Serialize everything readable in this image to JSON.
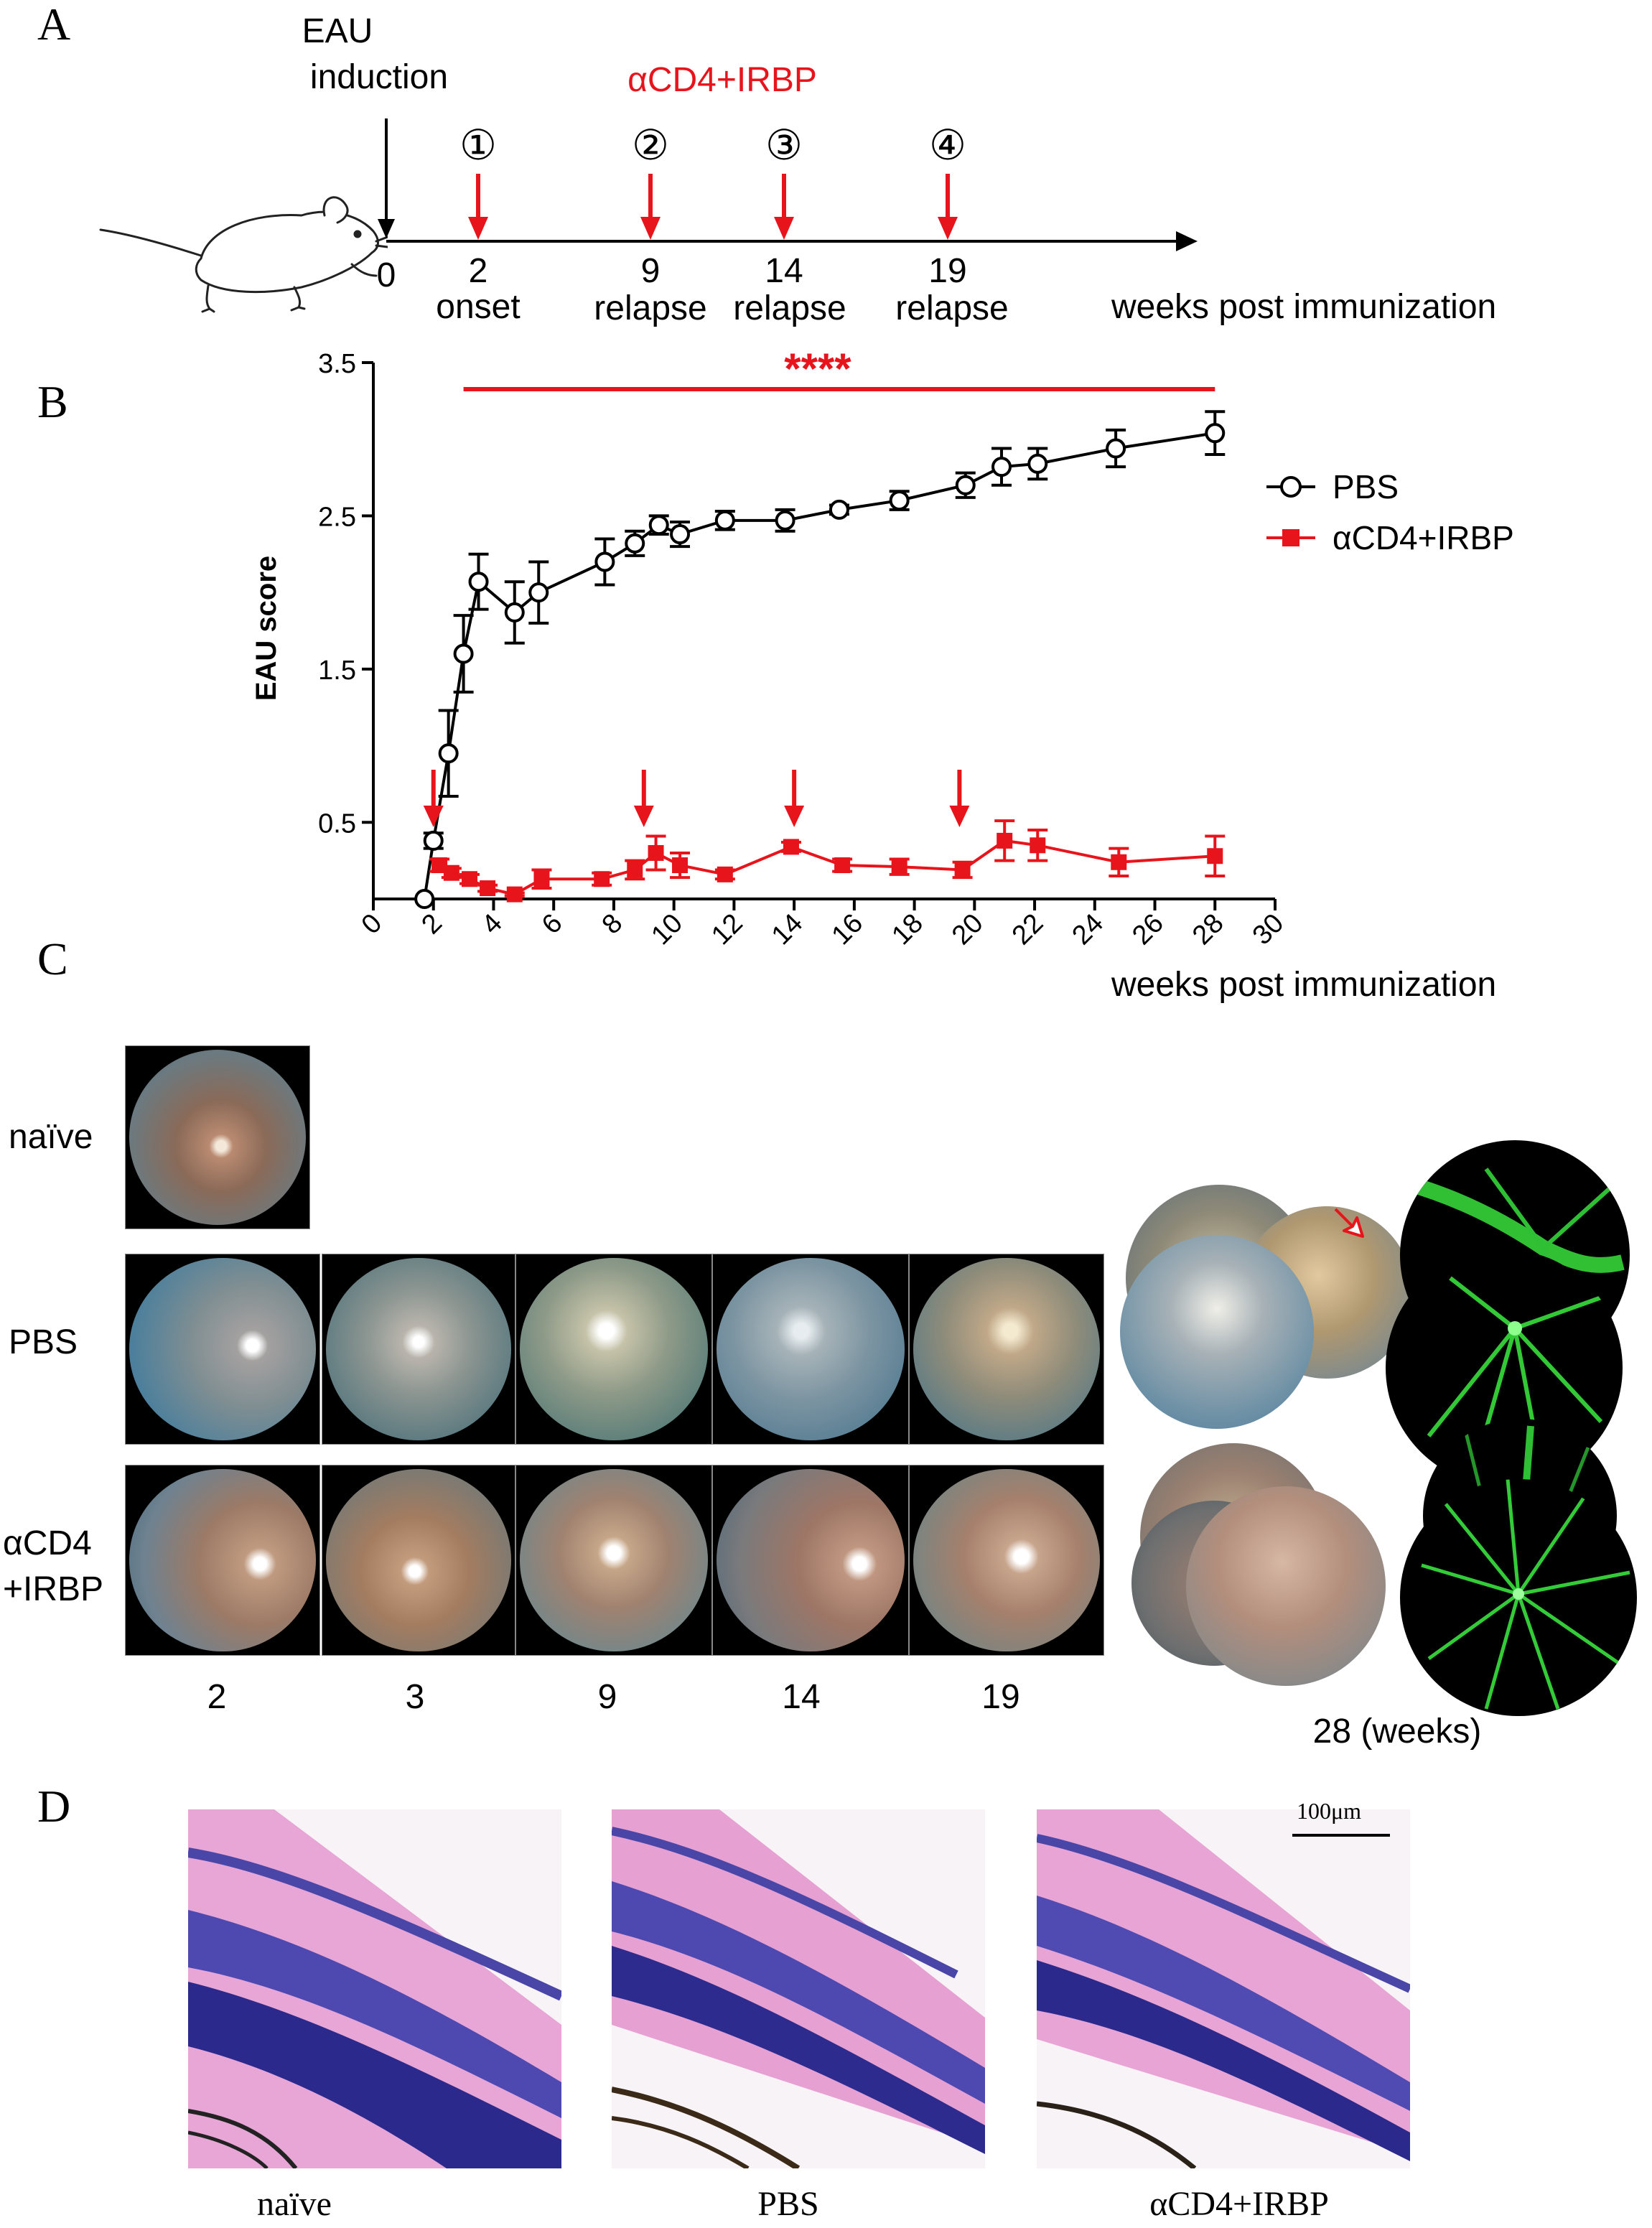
{
  "panels": {
    "a": "A",
    "b": "B",
    "c": "C",
    "d": "D"
  },
  "timeline": {
    "induction_line1": "EAU",
    "induction_line2": "induction",
    "treatment": "αCD4+IRBP",
    "start": "0",
    "axis_label": "weeks post immunization",
    "doses": [
      {
        "num": "①",
        "week": "2",
        "phase": "onset"
      },
      {
        "num": "②",
        "week": "9",
        "phase": "relapse"
      },
      {
        "num": "③",
        "week": "14",
        "phase": "relapse"
      },
      {
        "num": "④",
        "week": "19",
        "phase": "relapse"
      }
    ]
  },
  "chart_data": {
    "type": "line",
    "ylabel": "EAU score",
    "xlabel": "weeks post immunization",
    "xlim": [
      0,
      30
    ],
    "ylim": [
      0,
      3.5
    ],
    "xticks": [
      0,
      2,
      4,
      6,
      8,
      10,
      12,
      14,
      16,
      18,
      20,
      22,
      24,
      26,
      28,
      30
    ],
    "yticks": [
      0.5,
      1.5,
      2.5,
      3.5
    ],
    "significance": "****",
    "significance_range": [
      3,
      28
    ],
    "treatment_weeks": [
      2,
      9,
      14,
      19.5
    ],
    "legend_position": "right",
    "series": [
      {
        "name": "PBS",
        "color": "#000000",
        "marker": "open-circle",
        "x": [
          1.7,
          2.0,
          2.5,
          3.0,
          3.5,
          4.7,
          5.5,
          7.7,
          8.7,
          9.5,
          10.2,
          11.7,
          13.7,
          15.5,
          17.5,
          19.7,
          20.9,
          22.1,
          24.7,
          28.0
        ],
        "y": [
          0.0,
          0.38,
          0.95,
          1.6,
          2.07,
          1.87,
          2.0,
          2.2,
          2.32,
          2.44,
          2.38,
          2.47,
          2.47,
          2.54,
          2.6,
          2.7,
          2.82,
          2.84,
          2.94,
          3.04
        ],
        "err": [
          0.0,
          0.05,
          0.28,
          0.25,
          0.18,
          0.2,
          0.2,
          0.15,
          0.08,
          0.06,
          0.08,
          0.06,
          0.07,
          0.03,
          0.06,
          0.08,
          0.12,
          0.1,
          0.12,
          0.14
        ]
      },
      {
        "name": "αCD4+IRBP",
        "color": "#e8141c",
        "marker": "filled-square",
        "x": [
          2.2,
          2.6,
          3.2,
          3.8,
          4.7,
          5.6,
          7.6,
          8.7,
          9.4,
          10.2,
          11.7,
          13.9,
          15.6,
          17.5,
          19.6,
          21.0,
          22.1,
          24.8,
          28.0
        ],
        "y": [
          0.22,
          0.17,
          0.13,
          0.07,
          0.03,
          0.13,
          0.13,
          0.19,
          0.3,
          0.22,
          0.16,
          0.34,
          0.22,
          0.21,
          0.19,
          0.38,
          0.35,
          0.24,
          0.28
        ],
        "err": [
          0.04,
          0.03,
          0.03,
          0.02,
          0.01,
          0.06,
          0.04,
          0.06,
          0.11,
          0.08,
          0.03,
          0.03,
          0.04,
          0.05,
          0.05,
          0.13,
          0.1,
          0.09,
          0.13
        ]
      }
    ]
  },
  "fundus": {
    "rows": [
      "naïve",
      "PBS",
      "αCD4",
      "+IRBP"
    ],
    "weeks": [
      "2",
      "3",
      "9",
      "14",
      "19"
    ],
    "final_label": "28 (weeks)"
  },
  "histology": {
    "labels": [
      "naïve",
      "PBS",
      "αCD4+IRBP"
    ],
    "scale": "100μm"
  }
}
